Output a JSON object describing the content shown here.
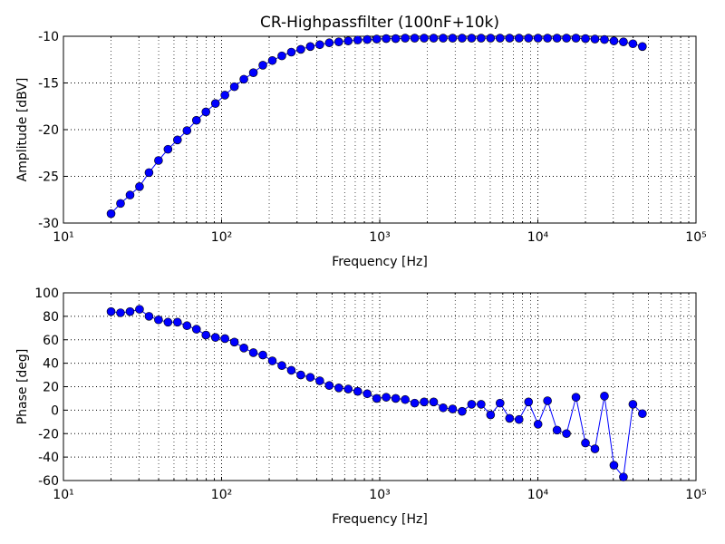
{
  "chart_data": [
    {
      "type": "line",
      "title": "CR-Highpassfilter (100nF+10k)",
      "xlabel": "Frequency [Hz]",
      "ylabel": "Amplitude [dBV]",
      "xscale": "log",
      "grid": true,
      "color": "#0000ff",
      "x": [
        20,
        22.96,
        26.37,
        30.27,
        34.76,
        39.91,
        45.82,
        52.61,
        60.41,
        69.36,
        79.62,
        91.42,
        104.96,
        120.51,
        138.37,
        158.87,
        182.4,
        209.4,
        240.5,
        276.1,
        317,
        364,
        417.9,
        479.8,
        550.9,
        632.5,
        726.2,
        833.8,
        957.3,
        1099,
        1262,
        1449,
        1664,
        1910,
        2193,
        2518,
        2891,
        3320,
        3811,
        4376,
        5024,
        5768,
        6623,
        7604,
        8730,
        10024,
        11509,
        13214,
        15172,
        17419,
        20000,
        22963,
        26365,
        30271,
        34756,
        39905,
        45817
      ],
      "values": [
        -29.0,
        -27.9,
        -27.0,
        -26.1,
        -24.6,
        -23.3,
        -22.1,
        -21.1,
        -20.1,
        -19.0,
        -18.1,
        -17.2,
        -16.3,
        -15.4,
        -14.6,
        -13.9,
        -13.1,
        -12.6,
        -12.1,
        -11.7,
        -11.4,
        -11.1,
        -10.9,
        -10.7,
        -10.6,
        -10.5,
        -10.4,
        -10.35,
        -10.3,
        -10.25,
        -10.25,
        -10.2,
        -10.2,
        -10.2,
        -10.2,
        -10.2,
        -10.2,
        -10.2,
        -10.2,
        -10.2,
        -10.2,
        -10.2,
        -10.2,
        -10.2,
        -10.2,
        -10.2,
        -10.2,
        -10.2,
        -10.2,
        -10.2,
        -10.25,
        -10.3,
        -10.35,
        -10.5,
        -10.6,
        -10.8,
        -11.1
      ],
      "xlim": [
        10,
        100000
      ],
      "xticks": [
        {
          "value": 10,
          "label": "10¹"
        },
        {
          "value": 100,
          "label": "10²"
        },
        {
          "value": 1000,
          "label": "10³"
        },
        {
          "value": 10000,
          "label": "10⁴"
        },
        {
          "value": 100000,
          "label": "10⁵"
        }
      ],
      "ylim": [
        -30,
        -10
      ],
      "yticks": [
        -30,
        -25,
        -20,
        -15,
        -10
      ]
    },
    {
      "type": "line",
      "xlabel": "Frequency [Hz]",
      "ylabel": "Phase [deg]",
      "xscale": "log",
      "grid": true,
      "color": "#0000ff",
      "x": [
        20,
        22.96,
        26.37,
        30.27,
        34.76,
        39.91,
        45.82,
        52.61,
        60.41,
        69.36,
        79.62,
        91.42,
        104.96,
        120.51,
        138.37,
        158.87,
        182.4,
        209.4,
        240.5,
        276.1,
        317,
        364,
        417.9,
        479.8,
        550.9,
        632.5,
        726.2,
        833.8,
        957.3,
        1099,
        1262,
        1449,
        1664,
        1910,
        2193,
        2518,
        2891,
        3320,
        3811,
        4376,
        5024,
        5768,
        6623,
        7604,
        8730,
        10024,
        11509,
        13214,
        15172,
        17419,
        20000,
        22963,
        26365,
        30271,
        34756,
        39905,
        45817
      ],
      "values": [
        84,
        83,
        84,
        86,
        80,
        77,
        75,
        75,
        72,
        69,
        64,
        62,
        61,
        58,
        53,
        49,
        47,
        42,
        38,
        34,
        30,
        28,
        25,
        21,
        19,
        18,
        16,
        14,
        10,
        11,
        10,
        9,
        6,
        7,
        7,
        2,
        1,
        -1,
        5,
        5,
        -4,
        6,
        -7,
        -8,
        7,
        -12,
        8,
        -17,
        -20,
        11,
        -28,
        -33,
        12,
        -47,
        -57,
        5,
        -3
      ],
      "xlim": [
        10,
        100000
      ],
      "xticks": [
        {
          "value": 10,
          "label": "10¹"
        },
        {
          "value": 100,
          "label": "10²"
        },
        {
          "value": 1000,
          "label": "10³"
        },
        {
          "value": 10000,
          "label": "10⁴"
        },
        {
          "value": 100000,
          "label": "10⁵"
        }
      ],
      "ylim": [
        -60,
        100
      ],
      "yticks": [
        -60,
        -40,
        -20,
        0,
        20,
        40,
        60,
        80,
        100
      ]
    }
  ]
}
